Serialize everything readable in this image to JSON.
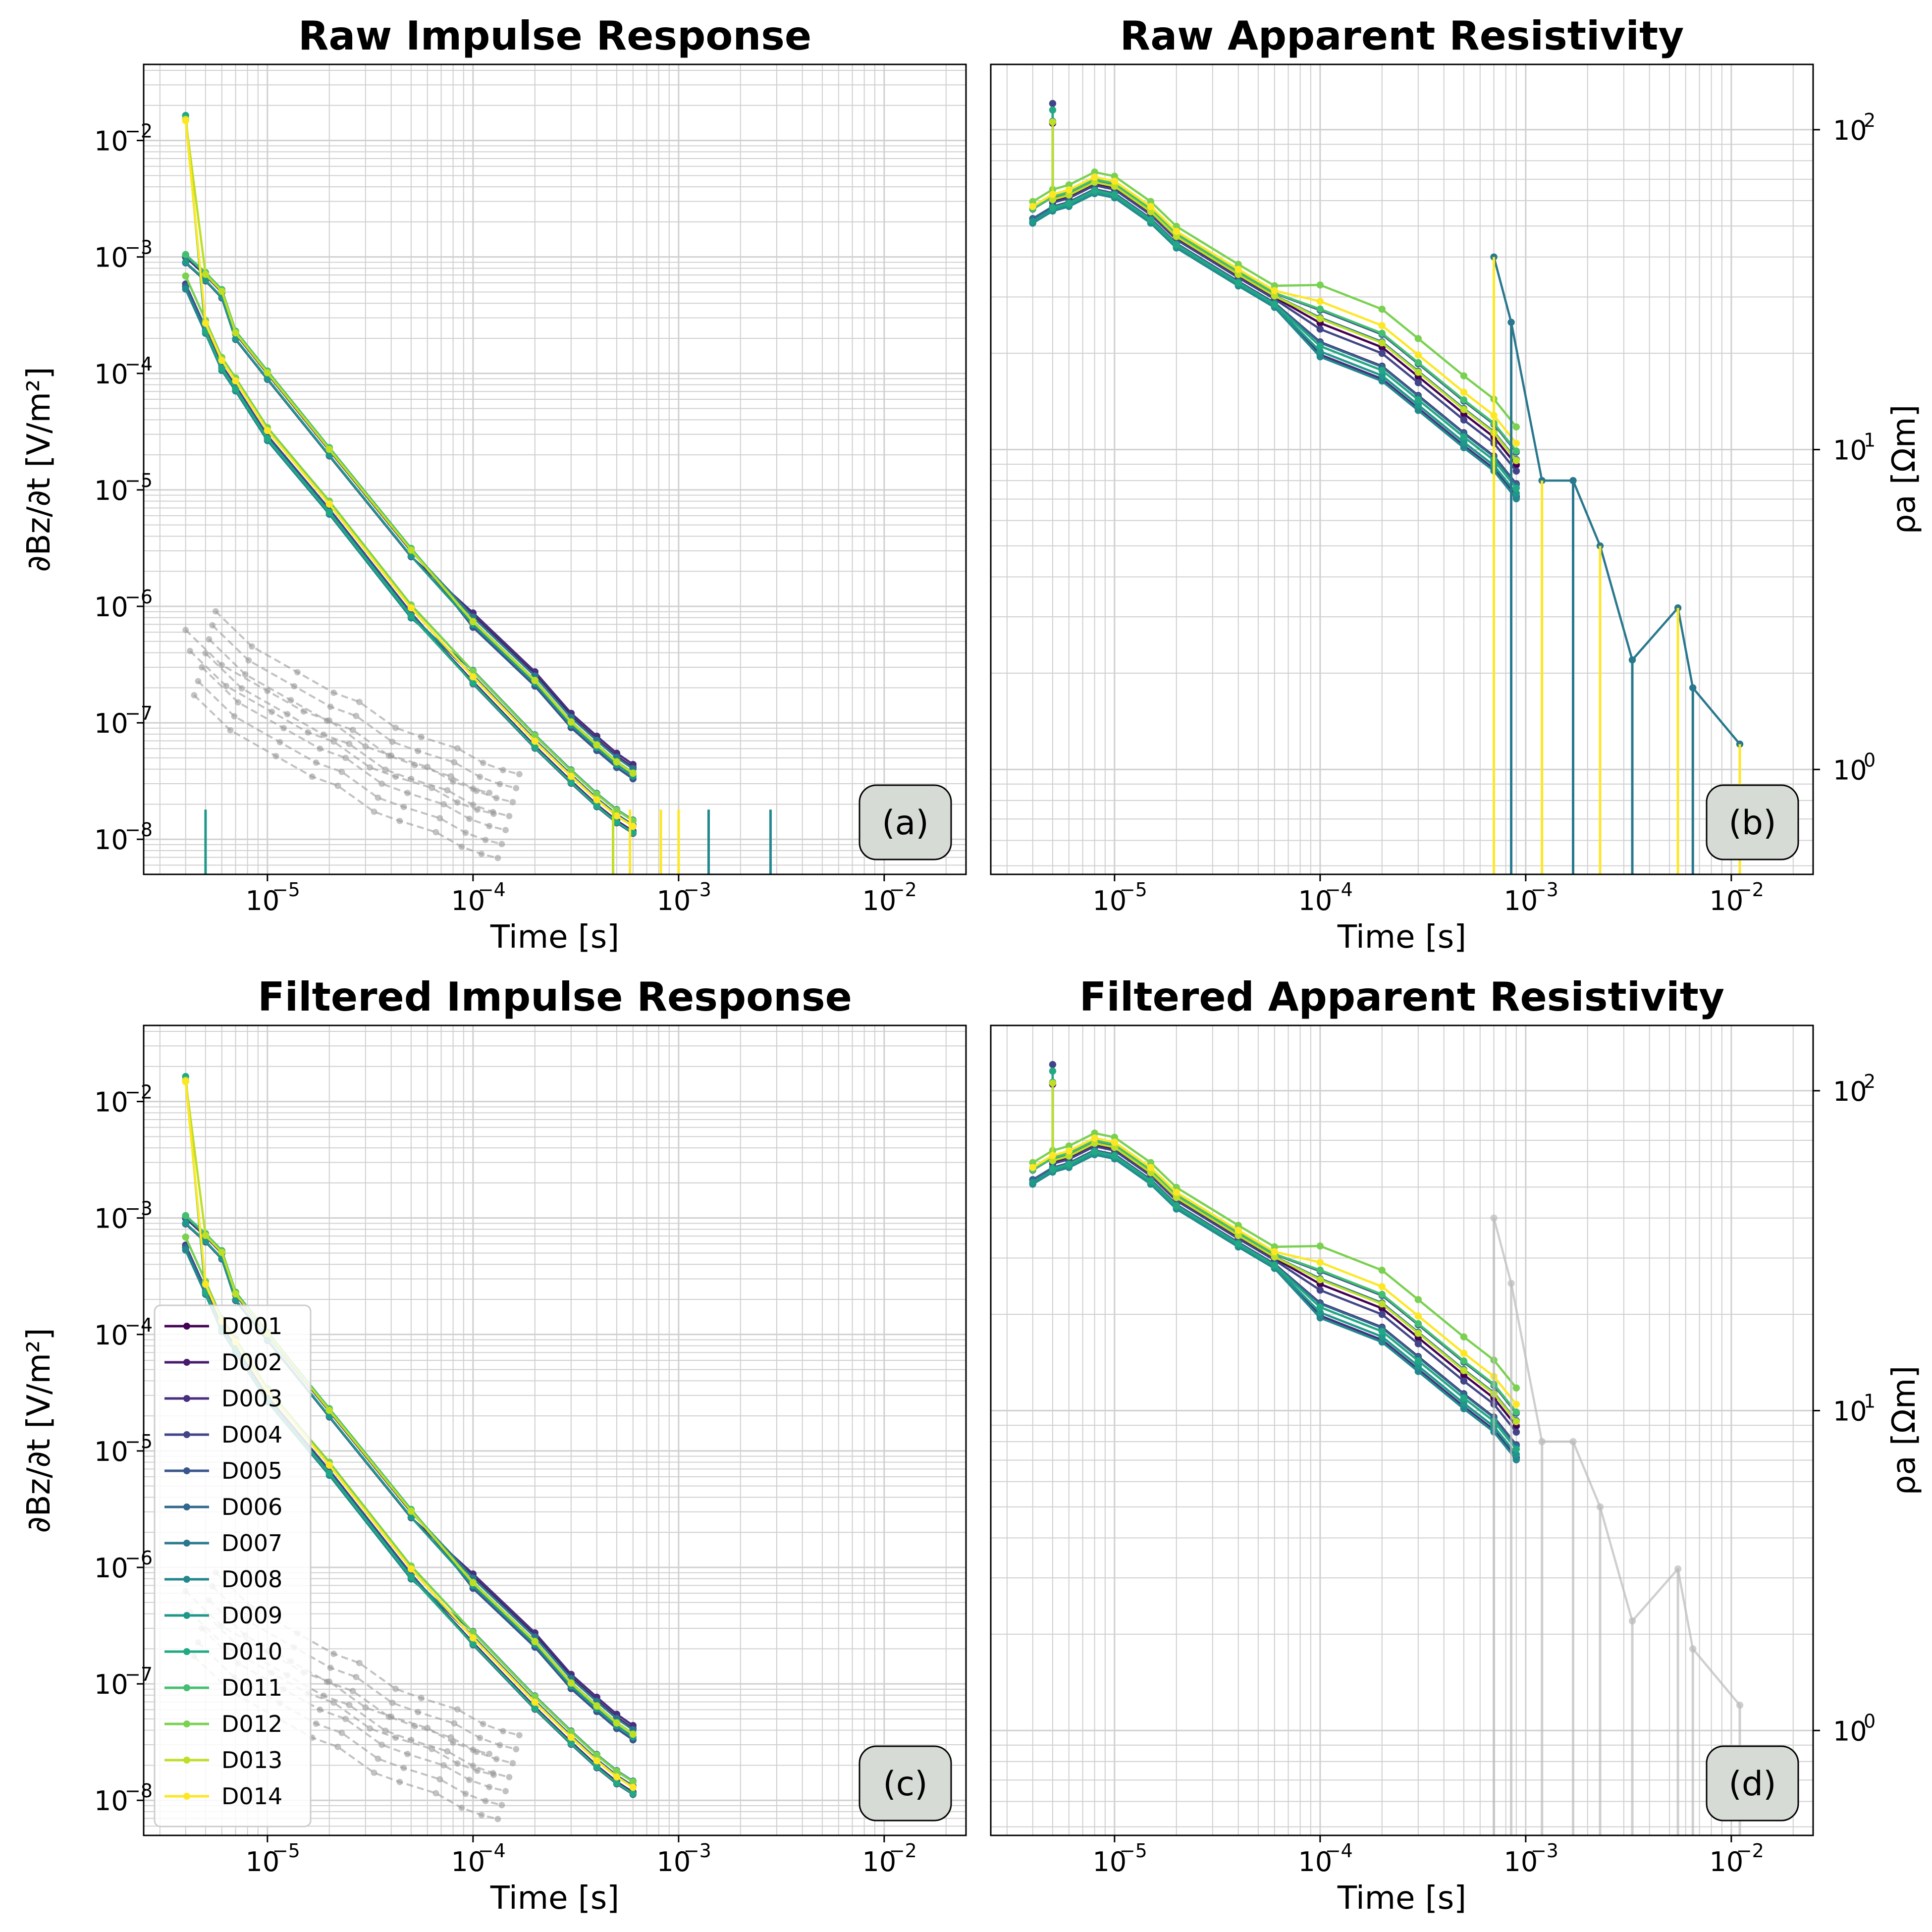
{
  "figure": {
    "panels": [
      {
        "id": "a",
        "title": "Raw Impulse Response",
        "badge": "(a)",
        "xlabel": "Time [s]",
        "ylabel": "∂Bz/∂t [V/m²]",
        "yaxis_side": "left",
        "xlim": [
          2.5e-06,
          0.025
        ],
        "ylim": [
          5e-09,
          0.045
        ],
        "xticks": [
          {
            "exp": "-5",
            "v": 1e-05
          },
          {
            "exp": "-4",
            "v": 0.0001
          },
          {
            "exp": "-3",
            "v": 0.001
          },
          {
            "exp": "-2",
            "v": 0.01
          }
        ],
        "yticks": [
          {
            "exp": "-8",
            "v": 1e-08
          },
          {
            "exp": "-7",
            "v": 1e-07
          },
          {
            "exp": "-6",
            "v": 1e-06
          },
          {
            "exp": "-5",
            "v": 1e-05
          },
          {
            "exp": "-4",
            "v": 0.0001
          },
          {
            "exp": "-3",
            "v": 0.001
          },
          {
            "exp": "-2",
            "v": 0.01
          }
        ],
        "legend": false,
        "filtered": false
      },
      {
        "id": "b",
        "title": "Raw Apparent Resistivity",
        "badge": "(b)",
        "xlabel": "Time [s]",
        "ylabel": "ρa [Ωm]",
        "yaxis_side": "right",
        "xlim": [
          2.5e-06,
          0.025
        ],
        "ylim": [
          0.47,
          160
        ],
        "xticks": [
          {
            "exp": "-5",
            "v": 1e-05
          },
          {
            "exp": "-4",
            "v": 0.0001
          },
          {
            "exp": "-3",
            "v": 0.001
          },
          {
            "exp": "-2",
            "v": 0.01
          }
        ],
        "yticks": [
          {
            "exp": "0",
            "v": 1
          },
          {
            "exp": "1",
            "v": 10
          },
          {
            "exp": "2",
            "v": 100
          }
        ],
        "legend": false,
        "filtered": false
      },
      {
        "id": "c",
        "title": "Filtered Impulse Response",
        "badge": "(c)",
        "xlabel": "Time [s]",
        "ylabel": "∂Bz/∂t [V/m²]",
        "yaxis_side": "left",
        "xlim": [
          2.5e-06,
          0.025
        ],
        "ylim": [
          5e-09,
          0.045
        ],
        "xticks": [
          {
            "exp": "-5",
            "v": 1e-05
          },
          {
            "exp": "-4",
            "v": 0.0001
          },
          {
            "exp": "-3",
            "v": 0.001
          },
          {
            "exp": "-2",
            "v": 0.01
          }
        ],
        "yticks": [
          {
            "exp": "-8",
            "v": 1e-08
          },
          {
            "exp": "-7",
            "v": 1e-07
          },
          {
            "exp": "-6",
            "v": 1e-06
          },
          {
            "exp": "-5",
            "v": 1e-05
          },
          {
            "exp": "-4",
            "v": 0.0001
          },
          {
            "exp": "-3",
            "v": 0.001
          },
          {
            "exp": "-2",
            "v": 0.01
          }
        ],
        "legend": true,
        "filtered": true
      },
      {
        "id": "d",
        "title": "Filtered Apparent Resistivity",
        "badge": "(d)",
        "xlabel": "Time [s]",
        "ylabel": "ρa [Ωm]",
        "yaxis_side": "right",
        "xlim": [
          2.5e-06,
          0.025
        ],
        "ylim": [
          0.47,
          160
        ],
        "xticks": [
          {
            "exp": "-5",
            "v": 1e-05
          },
          {
            "exp": "-4",
            "v": 0.0001
          },
          {
            "exp": "-3",
            "v": 0.001
          },
          {
            "exp": "-2",
            "v": 0.01
          }
        ],
        "yticks": [
          {
            "exp": "0",
            "v": 1
          },
          {
            "exp": "1",
            "v": 10
          },
          {
            "exp": "2",
            "v": 100
          }
        ],
        "legend": false,
        "filtered": true
      }
    ]
  },
  "chart_data": {
    "type": "line",
    "scale": {
      "x": "log",
      "y": "log"
    },
    "grid": true,
    "legend_position": "lower-left of panel (c)",
    "series": [
      {
        "name": "D001",
        "color": "#440154"
      },
      {
        "name": "D002",
        "color": "#481a6c"
      },
      {
        "name": "D003",
        "color": "#472f7d"
      },
      {
        "name": "D004",
        "color": "#414487"
      },
      {
        "name": "D005",
        "color": "#39568c"
      },
      {
        "name": "D006",
        "color": "#31688e"
      },
      {
        "name": "D007",
        "color": "#2a788e"
      },
      {
        "name": "D008",
        "color": "#23888e"
      },
      {
        "name": "D009",
        "color": "#1f988b"
      },
      {
        "name": "D010",
        "color": "#22a884"
      },
      {
        "name": "D011",
        "color": "#44bf70"
      },
      {
        "name": "D012",
        "color": "#7ad151"
      },
      {
        "name": "D013",
        "color": "#bddf26"
      },
      {
        "name": "D014",
        "color": "#fde725"
      }
    ],
    "impulse_response": {
      "upper_branch": {
        "x": [
          4e-06,
          5e-06,
          6e-06,
          7e-06,
          1e-05,
          2e-05,
          5e-05,
          0.0001,
          0.0002,
          0.0003,
          0.0004,
          0.0005,
          0.0006
        ],
        "y": [
          0.001,
          0.0007,
          0.0005,
          0.00022,
          0.0001,
          2.2e-05,
          3e-06,
          8e-07,
          2.5e-07,
          1.1e-07,
          7e-08,
          5e-08,
          4e-08
        ]
      },
      "lower_branch": {
        "x": [
          4e-06,
          5e-06,
          6e-06,
          7e-06,
          1e-05,
          2e-05,
          5e-05,
          0.0001,
          0.0002,
          0.0003,
          0.0004,
          0.0005,
          0.0006
        ],
        "y": [
          0.0006,
          0.00025,
          0.00012,
          8e-05,
          3e-05,
          7e-06,
          9e-07,
          2.5e-07,
          7e-08,
          3.5e-08,
          2.2e-08,
          1.6e-08,
          1.3e-08
        ]
      },
      "early_peak": {
        "x": 4e-06,
        "y": 0.02
      },
      "noise_floor": {
        "x": [
          4e-06,
          6e-06,
          1e-05,
          1.5e-05,
          2e-05,
          3e-05,
          4e-05,
          6e-05,
          8e-05,
          0.0001,
          0.00012
        ],
        "y": [
          3e-07,
          1.5e-07,
          9e-08,
          6e-08,
          5e-08,
          3e-08,
          2.5e-08,
          2e-08,
          1.5e-08,
          1.3e-08,
          1.2e-08
        ]
      }
    },
    "apparent_resistivity": {
      "x": [
        4e-06,
        5e-06,
        6e-06,
        8e-06,
        1e-05,
        1.5e-05,
        2e-05,
        4e-05,
        6e-05,
        0.0001,
        0.0002,
        0.0003,
        0.0005,
        0.0007,
        0.0009
      ],
      "y": [
        55,
        60,
        62,
        68,
        66,
        55,
        46,
        35,
        30,
        25,
        21,
        17,
        13,
        11,
        9
      ],
      "early_spike": {
        "x": 5e-06,
        "y": 120
      },
      "late_spikes": [
        {
          "x": 0.0007,
          "y": 40
        },
        {
          "x": 0.00085,
          "y": 25
        },
        {
          "x": 0.0012,
          "y": 8
        },
        {
          "x": 0.0017,
          "y": 8
        },
        {
          "x": 0.0023,
          "y": 5
        },
        {
          "x": 0.0033,
          "y": 2.2
        },
        {
          "x": 0.0055,
          "y": 3.2
        },
        {
          "x": 0.0065,
          "y": 1.8
        },
        {
          "x": 0.011,
          "y": 1.2
        }
      ]
    }
  }
}
